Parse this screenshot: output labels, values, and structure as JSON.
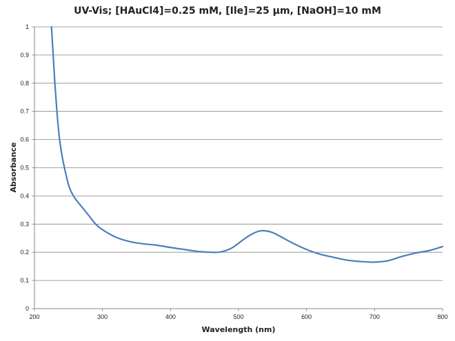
{
  "chart_data": {
    "type": "line",
    "title": "UV-Vis; [HAuCl4]=0.25 mM, [Ile]=25 µm, [NaOH]=10 mM",
    "xlabel": "Wavelength (nm)",
    "ylabel": "Absorbance",
    "xlim": [
      200,
      800
    ],
    "ylim": [
      0,
      1
    ],
    "x_ticks": [
      200,
      300,
      400,
      500,
      600,
      700,
      800
    ],
    "y_ticks": [
      0,
      0.1,
      0.2,
      0.3,
      0.4,
      0.5,
      0.6,
      0.7,
      0.8,
      0.9,
      1
    ],
    "grid": "horizontal",
    "legend": "none",
    "line_color": "#4a7ebb",
    "series": [
      {
        "x": [
          225,
          227,
          230,
          233,
          236,
          240,
          245,
          250,
          255,
          260,
          270,
          280,
          290,
          300,
          320,
          340,
          360,
          380,
          400,
          420,
          440,
          460,
          470,
          480,
          490,
          500,
          510,
          520,
          530,
          540,
          550,
          560,
          570,
          580,
          600,
          620,
          640,
          660,
          680,
          700,
          720,
          740,
          760,
          780,
          800
        ],
        "y": [
          1.0,
          0.92,
          0.8,
          0.7,
          0.62,
          0.55,
          0.49,
          0.44,
          0.41,
          0.39,
          0.36,
          0.33,
          0.3,
          0.28,
          0.253,
          0.238,
          0.23,
          0.225,
          0.217,
          0.21,
          0.203,
          0.2,
          0.2,
          0.205,
          0.215,
          0.232,
          0.25,
          0.265,
          0.275,
          0.276,
          0.27,
          0.258,
          0.245,
          0.232,
          0.21,
          0.193,
          0.182,
          0.172,
          0.167,
          0.165,
          0.17,
          0.185,
          0.197,
          0.206,
          0.22
        ]
      }
    ]
  }
}
